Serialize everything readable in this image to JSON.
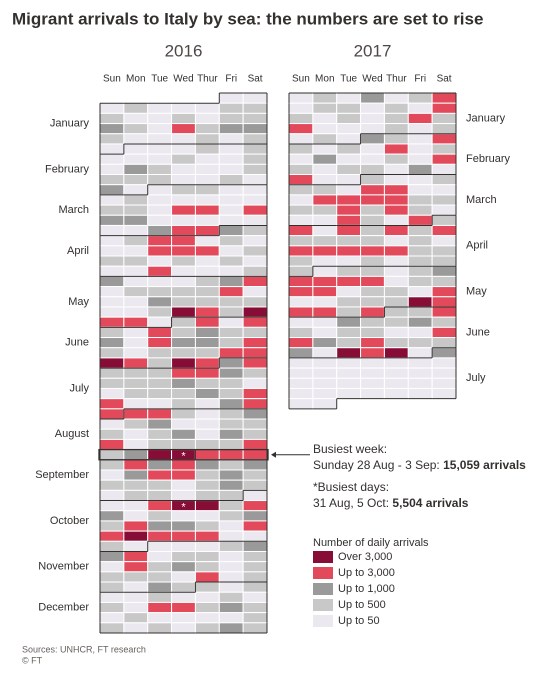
{
  "chart_data": {
    "type": "calendar-heatmap",
    "title": "Migrant arrivals to Italy by sea: the numbers are set to rise",
    "day_names": [
      "Sun",
      "Mon",
      "Tue",
      "Wed",
      "Thur",
      "Fri",
      "Sat"
    ],
    "month_names": [
      "January",
      "February",
      "March",
      "April",
      "May",
      "June",
      "July",
      "August",
      "September",
      "October",
      "November",
      "December"
    ],
    "years": [
      {
        "year": 2016,
        "weeks": [
          [
            null,
            null,
            null,
            null,
            null,
            4,
            4
          ],
          [
            4,
            3,
            4,
            4,
            4,
            3,
            3
          ],
          [
            3,
            4,
            4,
            3,
            4,
            3,
            3
          ],
          [
            2,
            3,
            4,
            1,
            3,
            2,
            2
          ],
          [
            3,
            4,
            4,
            4,
            3,
            4,
            3
          ],
          [
            4,
            4,
            4,
            4,
            3,
            4,
            3
          ],
          [
            4,
            4,
            4,
            3,
            4,
            4,
            3
          ],
          [
            4,
            2,
            3,
            4,
            4,
            4,
            3
          ],
          [
            3,
            3,
            3,
            4,
            4,
            3,
            4
          ],
          [
            2,
            4,
            4,
            3,
            3,
            4,
            4
          ],
          [
            4,
            3,
            4,
            4,
            4,
            4,
            4
          ],
          [
            3,
            3,
            4,
            1,
            1,
            4,
            1
          ],
          [
            2,
            2,
            4,
            4,
            4,
            4,
            4
          ],
          [
            4,
            4,
            2,
            1,
            1,
            2,
            3
          ],
          [
            4,
            3,
            1,
            1,
            4,
            3,
            4
          ],
          [
            4,
            4,
            1,
            1,
            1,
            4,
            3
          ],
          [
            3,
            3,
            4,
            3,
            4,
            3,
            4
          ],
          [
            4,
            4,
            1,
            4,
            4,
            4,
            3
          ],
          [
            2,
            4,
            4,
            4,
            3,
            2,
            1
          ],
          [
            4,
            3,
            3,
            3,
            3,
            1,
            4
          ],
          [
            4,
            4,
            2,
            3,
            3,
            3,
            3
          ],
          [
            4,
            4,
            3,
            0,
            1,
            3,
            0
          ],
          [
            1,
            1,
            4,
            3,
            1,
            4,
            1
          ],
          [
            3,
            4,
            1,
            3,
            2,
            3,
            3
          ],
          [
            2,
            4,
            1,
            2,
            2,
            3,
            1
          ],
          [
            3,
            4,
            3,
            3,
            3,
            1,
            1
          ],
          [
            0,
            1,
            3,
            0,
            1,
            2,
            1
          ],
          [
            3,
            3,
            3,
            1,
            1,
            2,
            3
          ],
          [
            3,
            3,
            3,
            2,
            3,
            3,
            4
          ],
          [
            4,
            3,
            3,
            3,
            2,
            3,
            1
          ],
          [
            1,
            4,
            4,
            3,
            4,
            2,
            1
          ],
          [
            1,
            1,
            1,
            3,
            4,
            3,
            2
          ],
          [
            4,
            3,
            2,
            4,
            4,
            3,
            3
          ],
          [
            3,
            4,
            3,
            2,
            4,
            2,
            3
          ],
          [
            1,
            4,
            3,
            3,
            3,
            3,
            1
          ],
          [
            3,
            2,
            0,
            0,
            1,
            1,
            1
          ],
          [
            3,
            1,
            2,
            1,
            2,
            3,
            2
          ],
          [
            4,
            2,
            1,
            1,
            3,
            2,
            3
          ],
          [
            3,
            3,
            3,
            4,
            3,
            2,
            3
          ],
          [
            4,
            3,
            3,
            4,
            3,
            3,
            4
          ],
          [
            4,
            4,
            1,
            0,
            0,
            3,
            1
          ],
          [
            2,
            4,
            3,
            4,
            4,
            3,
            2
          ],
          [
            3,
            1,
            2,
            2,
            3,
            4,
            1
          ],
          [
            1,
            0,
            1,
            1,
            1,
            4,
            4
          ],
          [
            3,
            4,
            4,
            4,
            4,
            3,
            2
          ],
          [
            2,
            1,
            4,
            3,
            3,
            4,
            3
          ],
          [
            4,
            1,
            3,
            2,
            3,
            4,
            3
          ],
          [
            3,
            3,
            3,
            4,
            1,
            4,
            3
          ],
          [
            3,
            4,
            2,
            3,
            3,
            4,
            3
          ],
          [
            4,
            4,
            3,
            4,
            4,
            3,
            4
          ],
          [
            3,
            4,
            1,
            1,
            3,
            2,
            3
          ],
          [
            4,
            3,
            4,
            4,
            4,
            4,
            3
          ],
          [
            3,
            4,
            3,
            4,
            3,
            2,
            3
          ]
        ]
      },
      {
        "year": 2017,
        "weeks": [
          [
            4,
            3,
            4,
            2,
            4,
            3,
            1
          ],
          [
            4,
            3,
            3,
            4,
            3,
            4,
            1
          ],
          [
            3,
            4,
            3,
            4,
            3,
            1,
            3
          ],
          [
            1,
            4,
            4,
            4,
            3,
            4,
            3
          ],
          [
            4,
            3,
            4,
            2,
            3,
            4,
            1
          ],
          [
            3,
            4,
            3,
            4,
            1,
            4,
            3
          ],
          [
            4,
            2,
            4,
            4,
            3,
            4,
            1
          ],
          [
            3,
            4,
            3,
            3,
            4,
            2,
            4
          ],
          [
            1,
            4,
            4,
            3,
            4,
            4,
            3
          ],
          [
            3,
            3,
            4,
            1,
            1,
            4,
            4
          ],
          [
            4,
            1,
            1,
            1,
            1,
            3,
            3
          ],
          [
            3,
            3,
            1,
            3,
            1,
            3,
            4
          ],
          [
            4,
            4,
            1,
            3,
            4,
            1,
            3
          ],
          [
            1,
            4,
            1,
            3,
            1,
            3,
            1
          ],
          [
            3,
            3,
            3,
            3,
            4,
            3,
            4
          ],
          [
            1,
            1,
            1,
            1,
            1,
            3,
            3
          ],
          [
            3,
            4,
            4,
            3,
            4,
            3,
            3
          ],
          [
            3,
            4,
            3,
            3,
            4,
            3,
            2
          ],
          [
            1,
            1,
            1,
            1,
            4,
            3,
            3
          ],
          [
            1,
            1,
            4,
            3,
            3,
            4,
            1
          ],
          [
            4,
            4,
            3,
            3,
            3,
            0,
            1
          ],
          [
            1,
            1,
            3,
            1,
            3,
            3,
            1
          ],
          [
            4,
            4,
            2,
            3,
            3,
            2,
            3
          ],
          [
            3,
            4,
            3,
            3,
            4,
            4,
            1
          ],
          [
            1,
            2,
            3,
            1,
            3,
            3,
            3
          ],
          [
            2,
            4,
            0,
            1,
            0,
            4,
            2
          ],
          [
            4,
            4,
            4,
            4,
            4,
            4,
            4
          ],
          [
            4,
            4,
            4,
            4,
            4,
            4,
            4
          ],
          [
            4,
            4,
            4,
            4,
            4,
            4,
            4
          ],
          [
            4,
            4,
            4,
            4,
            4,
            4,
            4
          ],
          [
            4,
            4,
            null,
            null,
            null,
            null,
            null
          ]
        ]
      }
    ],
    "legend": {
      "title": "Number of daily arrivals",
      "items": [
        {
          "label": "Over 3,000",
          "color": "#870c36"
        },
        {
          "label": "Up to 3,000",
          "color": "#e24a5c"
        },
        {
          "label": "Up to 1,000",
          "color": "#9b9a9a"
        },
        {
          "label": "Up to 500",
          "color": "#c9c8c8"
        },
        {
          "label": "Up to 50",
          "color": "#ebe9ef"
        }
      ]
    },
    "annotations": {
      "busiest_week_title": "Busiest week:",
      "busiest_week_dates": "Sunday 28 Aug - 3 Sep:",
      "busiest_week_total": "15,059 arrivals",
      "busiest_days_title": "*Busiest days:",
      "busiest_days_dates": "31 Aug, 5 Oct:",
      "busiest_days_total": "5,504 arrivals",
      "marker": "*"
    }
  },
  "footer": {
    "sources": "Sources: UNHCR, FT research",
    "credit": "© FT"
  }
}
